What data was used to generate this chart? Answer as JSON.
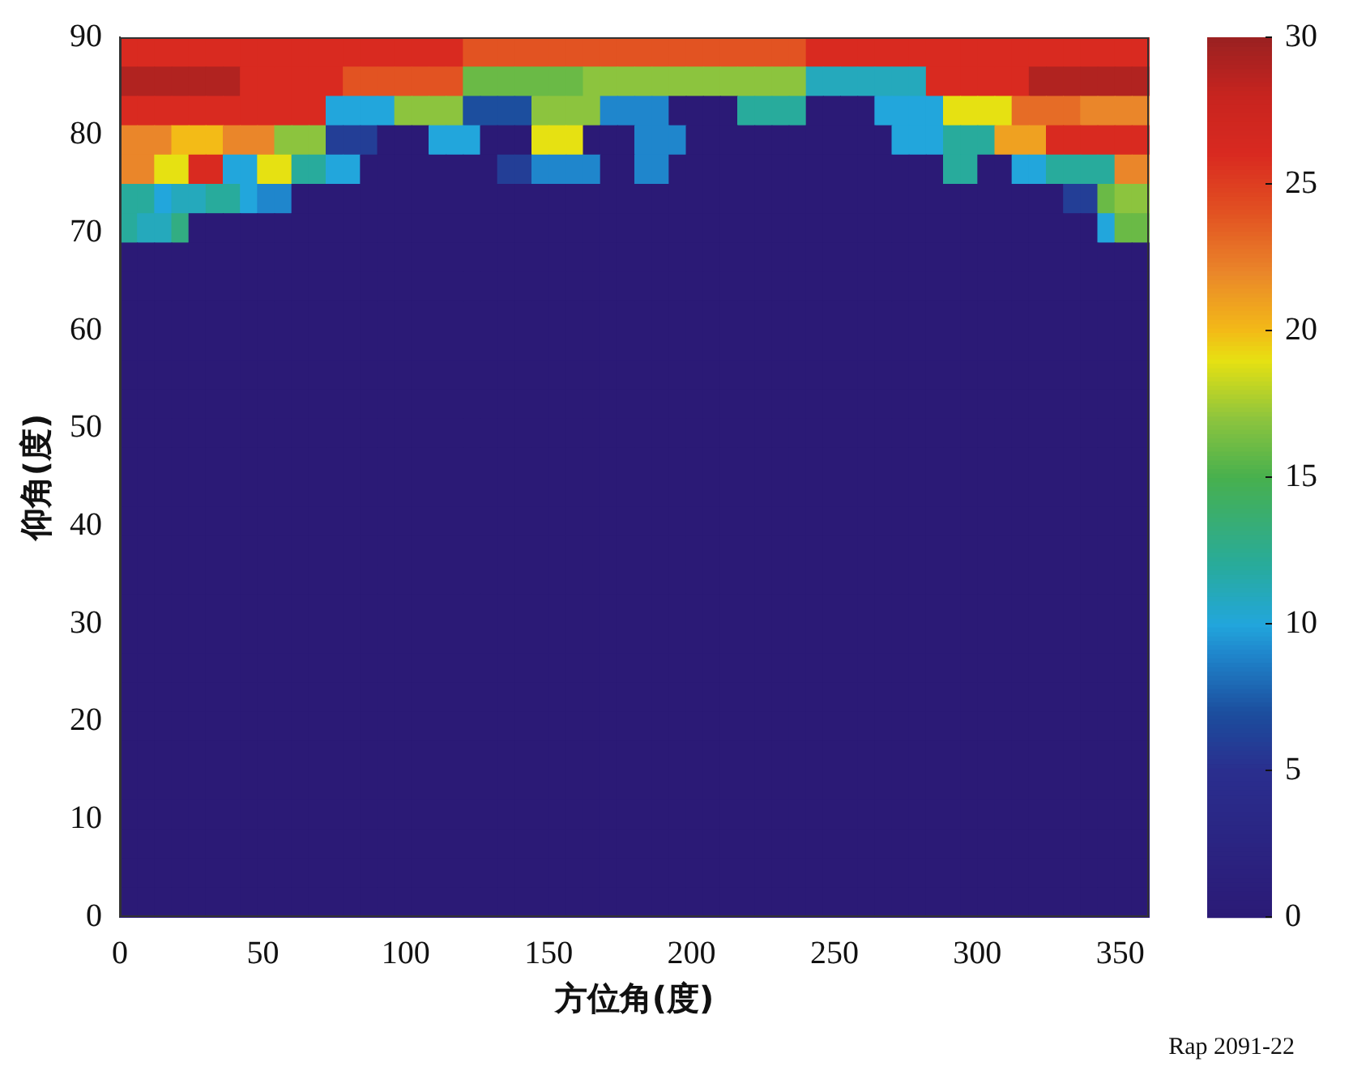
{
  "chart_data": {
    "type": "heatmap",
    "xlabel": "方位角(度)",
    "ylabel": "仰角(度)",
    "xlim": [
      0,
      360
    ],
    "xticks": [
      0,
      50,
      100,
      150,
      200,
      250,
      300,
      350
    ],
    "ylim": [
      0,
      90
    ],
    "yticks": [
      0,
      10,
      20,
      30,
      40,
      50,
      60,
      70,
      80,
      90
    ],
    "clim": [
      0,
      30
    ],
    "cticks": [
      0,
      5,
      10,
      15,
      20,
      25,
      30
    ],
    "annotations": [
      "Rap 2091-22"
    ],
    "cells": [
      [
        26,
        26,
        26,
        26,
        26,
        26,
        26,
        26,
        26,
        26,
        26,
        26,
        26,
        26,
        26,
        26,
        26,
        26,
        26,
        26,
        24,
        24,
        24,
        24,
        24,
        24,
        24,
        24,
        24,
        24,
        24,
        24,
        24,
        24,
        24,
        24,
        24,
        24,
        24,
        24,
        26,
        26,
        26,
        26,
        26,
        26,
        26,
        26,
        26,
        26,
        26,
        26,
        26,
        26,
        26,
        26,
        26,
        26,
        26,
        26
      ],
      [
        29,
        29,
        29,
        29,
        29,
        29,
        29,
        26,
        26,
        26,
        26,
        26,
        26,
        24,
        24,
        24,
        24,
        24,
        24,
        24,
        16,
        16,
        16,
        16,
        16,
        16,
        16,
        17,
        17,
        17,
        17,
        17,
        17,
        17,
        17,
        17,
        17,
        17,
        17,
        17,
        11,
        11,
        11,
        11,
        11,
        11,
        11,
        26,
        26,
        26,
        26,
        26,
        26,
        29,
        29,
        29,
        29,
        29,
        29,
        29
      ],
      [
        26,
        26,
        26,
        26,
        26,
        26,
        26,
        26,
        26,
        26,
        26,
        26,
        10,
        10,
        10,
        10,
        17,
        17,
        17,
        17,
        7,
        7,
        7,
        7,
        17,
        17,
        17,
        17,
        9,
        9,
        9,
        9,
        0,
        0,
        0,
        0,
        12,
        12,
        12,
        12,
        0,
        0,
        0,
        0,
        10,
        10,
        10,
        10,
        19,
        19,
        19,
        19,
        23,
        23,
        23,
        23,
        22,
        22,
        22,
        22
      ],
      [
        22,
        22,
        22,
        20,
        20,
        20,
        22,
        22,
        22,
        17,
        17,
        17,
        6,
        6,
        6,
        0,
        0,
        0,
        10,
        10,
        10,
        0,
        0,
        0,
        19,
        19,
        19,
        0,
        0,
        0,
        9,
        9,
        9,
        0,
        0,
        0,
        0,
        0,
        0,
        0,
        0,
        0,
        0,
        0,
        0,
        10,
        10,
        10,
        12,
        12,
        12,
        21,
        21,
        21,
        26,
        26,
        26,
        26,
        26,
        26
      ],
      [
        22,
        22,
        19,
        19,
        26,
        26,
        10,
        10,
        19,
        19,
        12,
        12,
        10,
        10,
        0,
        0,
        0,
        0,
        0,
        0,
        0,
        0,
        6,
        6,
        9,
        9,
        9,
        9,
        0,
        0,
        9,
        9,
        0,
        0,
        0,
        0,
        0,
        0,
        0,
        0,
        0,
        0,
        0,
        0,
        0,
        0,
        0,
        0,
        12,
        12,
        0,
        0,
        10,
        10,
        12,
        12,
        12,
        12,
        22,
        22
      ],
      [
        12,
        12,
        10,
        11,
        11,
        12,
        12,
        10,
        9,
        9,
        0,
        0,
        0,
        0,
        0,
        0,
        0,
        0,
        0,
        0,
        0,
        0,
        0,
        0,
        0,
        0,
        0,
        0,
        0,
        0,
        0,
        0,
        0,
        0,
        0,
        0,
        0,
        0,
        0,
        0,
        0,
        0,
        0,
        0,
        0,
        0,
        0,
        0,
        0,
        0,
        0,
        0,
        0,
        0,
        0,
        6,
        6,
        16,
        17,
        17
      ],
      [
        12,
        11,
        11,
        13,
        0,
        0,
        0,
        0,
        0,
        0,
        0,
        0,
        0,
        0,
        0,
        0,
        0,
        0,
        0,
        0,
        0,
        0,
        0,
        0,
        0,
        0,
        0,
        0,
        0,
        0,
        0,
        0,
        0,
        0,
        0,
        0,
        0,
        0,
        0,
        0,
        0,
        0,
        0,
        0,
        0,
        0,
        0,
        0,
        0,
        0,
        0,
        0,
        0,
        0,
        0,
        0,
        0,
        10,
        16,
        16
      ],
      [
        0,
        0,
        0,
        0,
        0,
        0,
        0,
        0,
        0,
        0,
        0,
        0,
        0,
        0,
        0,
        0,
        0,
        0,
        0,
        0,
        0,
        0,
        0,
        0,
        0,
        0,
        0,
        0,
        0,
        0,
        0,
        0,
        0,
        0,
        0,
        0,
        0,
        0,
        0,
        0,
        0,
        0,
        0,
        0,
        0,
        0,
        0,
        0,
        0,
        0,
        0,
        0,
        0,
        0,
        0,
        0,
        0,
        0,
        0,
        0
      ],
      [
        0,
        0,
        0,
        0,
        0,
        0,
        0,
        0,
        0,
        0,
        0,
        0,
        0,
        0,
        0,
        0,
        0,
        0,
        0,
        0,
        0,
        0,
        0,
        0,
        0,
        0,
        0,
        0,
        0,
        0,
        0,
        0,
        0,
        0,
        0,
        0,
        0,
        0,
        0,
        0,
        0,
        0,
        0,
        0,
        0,
        0,
        0,
        0,
        0,
        0,
        0,
        0,
        0,
        0,
        0,
        0,
        0,
        0,
        0,
        0
      ],
      [
        0,
        0,
        0,
        0,
        0,
        0,
        0,
        0,
        0,
        0,
        0,
        0,
        0,
        0,
        0,
        0,
        0,
        0,
        0,
        0,
        0,
        0,
        0,
        0,
        0,
        0,
        0,
        0,
        0,
        0,
        0,
        0,
        0,
        0,
        0,
        0,
        0,
        0,
        0,
        0,
        0,
        0,
        0,
        0,
        0,
        0,
        0,
        0,
        0,
        0,
        0,
        0,
        0,
        0,
        0,
        0,
        0,
        0,
        0,
        0
      ],
      [
        0,
        0,
        0,
        0,
        0,
        0,
        0,
        0,
        0,
        0,
        0,
        0,
        0,
        0,
        0,
        0,
        0,
        0,
        0,
        0,
        0,
        0,
        0,
        0,
        0,
        0,
        0,
        0,
        0,
        0,
        0,
        0,
        0,
        0,
        0,
        0,
        0,
        0,
        0,
        0,
        0,
        0,
        0,
        0,
        0,
        0,
        0,
        0,
        0,
        0,
        0,
        0,
        0,
        0,
        0,
        0,
        0,
        0,
        0,
        0
      ],
      [
        0,
        0,
        0,
        0,
        0,
        0,
        0,
        0,
        0,
        0,
        0,
        0,
        0,
        0,
        0,
        0,
        0,
        0,
        0,
        0,
        0,
        0,
        0,
        0,
        0,
        0,
        0,
        0,
        0,
        0,
        0,
        0,
        0,
        0,
        0,
        0,
        0,
        0,
        0,
        0,
        0,
        0,
        0,
        0,
        0,
        0,
        0,
        0,
        0,
        0,
        0,
        0,
        0,
        0,
        0,
        0,
        0,
        0,
        0,
        0
      ],
      [
        0,
        0,
        0,
        0,
        0,
        0,
        0,
        0,
        0,
        0,
        0,
        0,
        0,
        0,
        0,
        0,
        0,
        0,
        0,
        0,
        0,
        0,
        0,
        0,
        0,
        0,
        0,
        0,
        0,
        0,
        0,
        0,
        0,
        0,
        0,
        0,
        0,
        0,
        0,
        0,
        0,
        0,
        0,
        0,
        0,
        0,
        0,
        0,
        0,
        0,
        0,
        0,
        0,
        0,
        0,
        0,
        0,
        0,
        0,
        0
      ],
      [
        0,
        0,
        0,
        0,
        0,
        0,
        0,
        0,
        0,
        0,
        0,
        0,
        0,
        0,
        0,
        0,
        0,
        0,
        0,
        0,
        0,
        0,
        0,
        0,
        0,
        0,
        0,
        0,
        0,
        0,
        0,
        0,
        0,
        0,
        0,
        0,
        0,
        0,
        0,
        0,
        0,
        0,
        0,
        0,
        0,
        0,
        0,
        0,
        0,
        0,
        0,
        0,
        0,
        0,
        0,
        0,
        0,
        0,
        0,
        0
      ],
      [
        0,
        0,
        0,
        0,
        0,
        0,
        0,
        0,
        0,
        0,
        0,
        0,
        0,
        0,
        0,
        0,
        0,
        0,
        0,
        0,
        0,
        0,
        0,
        0,
        0,
        0,
        0,
        0,
        0,
        0,
        0,
        0,
        0,
        0,
        0,
        0,
        0,
        0,
        0,
        0,
        0,
        0,
        0,
        0,
        0,
        0,
        0,
        0,
        0,
        0,
        0,
        0,
        0,
        0,
        0,
        0,
        0,
        0,
        0,
        0
      ],
      [
        0,
        0,
        0,
        0,
        0,
        0,
        0,
        0,
        0,
        0,
        0,
        0,
        0,
        0,
        0,
        0,
        0,
        0,
        0,
        0,
        0,
        0,
        0,
        0,
        0,
        0,
        0,
        0,
        0,
        0,
        0,
        0,
        0,
        0,
        0,
        0,
        0,
        0,
        0,
        0,
        0,
        0,
        0,
        0,
        0,
        0,
        0,
        0,
        0,
        0,
        0,
        0,
        0,
        0,
        0,
        0,
        0,
        0,
        0,
        0
      ],
      [
        0,
        0,
        0,
        0,
        0,
        0,
        0,
        0,
        0,
        0,
        0,
        0,
        0,
        0,
        0,
        0,
        0,
        0,
        0,
        0,
        0,
        0,
        0,
        0,
        0,
        0,
        0,
        0,
        0,
        0,
        0,
        0,
        0,
        0,
        0,
        0,
        0,
        0,
        0,
        0,
        0,
        0,
        0,
        0,
        0,
        0,
        0,
        0,
        0,
        0,
        0,
        0,
        0,
        0,
        0,
        0,
        0,
        0,
        0,
        0
      ],
      [
        0,
        0,
        0,
        0,
        0,
        0,
        0,
        0,
        0,
        0,
        0,
        0,
        0,
        0,
        0,
        0,
        0,
        0,
        0,
        0,
        0,
        0,
        0,
        0,
        0,
        0,
        0,
        0,
        0,
        0,
        0,
        0,
        0,
        0,
        0,
        0,
        0,
        0,
        0,
        0,
        0,
        0,
        0,
        0,
        0,
        0,
        0,
        0,
        0,
        0,
        0,
        0,
        0,
        0,
        0,
        0,
        0,
        0,
        0,
        0
      ],
      [
        0,
        0,
        0,
        0,
        0,
        0,
        0,
        0,
        0,
        0,
        0,
        0,
        0,
        0,
        0,
        0,
        0,
        0,
        0,
        0,
        0,
        0,
        0,
        0,
        0,
        0,
        0,
        0,
        0,
        0,
        0,
        0,
        0,
        0,
        0,
        0,
        0,
        0,
        0,
        0,
        0,
        0,
        0,
        0,
        0,
        0,
        0,
        0,
        0,
        0,
        0,
        0,
        0,
        0,
        0,
        0,
        0,
        0,
        0,
        0
      ],
      [
        0,
        0,
        0,
        0,
        0,
        0,
        0,
        0,
        0,
        0,
        0,
        0,
        0,
        0,
        0,
        0,
        0,
        0,
        0,
        0,
        0,
        0,
        0,
        0,
        0,
        0,
        0,
        0,
        0,
        0,
        0,
        0,
        0,
        0,
        0,
        0,
        0,
        0,
        0,
        0,
        0,
        0,
        0,
        0,
        0,
        0,
        0,
        0,
        0,
        0,
        0,
        0,
        0,
        0,
        0,
        0,
        0,
        0,
        0,
        0
      ],
      [
        0,
        0,
        0,
        0,
        0,
        0,
        0,
        0,
        0,
        0,
        0,
        0,
        0,
        0,
        0,
        0,
        0,
        0,
        0,
        0,
        0,
        0,
        0,
        0,
        0,
        0,
        0,
        0,
        0,
        0,
        0,
        0,
        0,
        0,
        0,
        0,
        0,
        0,
        0,
        0,
        0,
        0,
        0,
        0,
        0,
        0,
        0,
        0,
        0,
        0,
        0,
        0,
        0,
        0,
        0,
        0,
        0,
        0,
        0,
        0
      ],
      [
        0,
        0,
        0,
        0,
        0,
        0,
        0,
        0,
        0,
        0,
        0,
        0,
        0,
        0,
        0,
        0,
        0,
        0,
        0,
        0,
        0,
        0,
        0,
        0,
        0,
        0,
        0,
        0,
        0,
        0,
        0,
        0,
        0,
        0,
        0,
        0,
        0,
        0,
        0,
        0,
        0,
        0,
        0,
        0,
        0,
        0,
        0,
        0,
        0,
        0,
        0,
        0,
        0,
        0,
        0,
        0,
        0,
        0,
        0,
        0
      ],
      [
        0,
        0,
        0,
        0,
        0,
        0,
        0,
        0,
        0,
        0,
        0,
        0,
        0,
        0,
        0,
        0,
        0,
        0,
        0,
        0,
        0,
        0,
        0,
        0,
        0,
        0,
        0,
        0,
        0,
        0,
        0,
        0,
        0,
        0,
        0,
        0,
        0,
        0,
        0,
        0,
        0,
        0,
        0,
        0,
        0,
        0,
        0,
        0,
        0,
        0,
        0,
        0,
        0,
        0,
        0,
        0,
        0,
        0,
        0,
        0
      ],
      [
        0,
        0,
        0,
        0,
        0,
        0,
        0,
        0,
        0,
        0,
        0,
        0,
        0,
        0,
        0,
        0,
        0,
        0,
        0,
        0,
        0,
        0,
        0,
        0,
        0,
        0,
        0,
        0,
        0,
        0,
        0,
        0,
        0,
        0,
        0,
        0,
        0,
        0,
        0,
        0,
        0,
        0,
        0,
        0,
        0,
        0,
        0,
        0,
        0,
        0,
        0,
        0,
        0,
        0,
        0,
        0,
        0,
        0,
        0,
        0
      ],
      [
        0,
        0,
        0,
        0,
        0,
        0,
        0,
        0,
        0,
        0,
        0,
        0,
        0,
        0,
        0,
        0,
        0,
        0,
        0,
        0,
        0,
        0,
        0,
        0,
        0,
        0,
        0,
        0,
        0,
        0,
        0,
        0,
        0,
        0,
        0,
        0,
        0,
        0,
        0,
        0,
        0,
        0,
        0,
        0,
        0,
        0,
        0,
        0,
        0,
        0,
        0,
        0,
        0,
        0,
        0,
        0,
        0,
        0,
        0,
        0
      ],
      [
        0,
        0,
        0,
        0,
        0,
        0,
        0,
        0,
        0,
        0,
        0,
        0,
        0,
        0,
        0,
        0,
        0,
        0,
        0,
        0,
        0,
        0,
        0,
        0,
        0,
        0,
        0,
        0,
        0,
        0,
        0,
        0,
        0,
        0,
        0,
        0,
        0,
        0,
        0,
        0,
        0,
        0,
        0,
        0,
        0,
        0,
        0,
        0,
        0,
        0,
        0,
        0,
        0,
        0,
        0,
        0,
        0,
        0,
        0,
        0
      ],
      [
        0,
        0,
        0,
        0,
        0,
        0,
        0,
        0,
        0,
        0,
        0,
        0,
        0,
        0,
        0,
        0,
        0,
        0,
        0,
        0,
        0,
        0,
        0,
        0,
        0,
        0,
        0,
        0,
        0,
        0,
        0,
        0,
        0,
        0,
        0,
        0,
        0,
        0,
        0,
        0,
        0,
        0,
        0,
        0,
        0,
        0,
        0,
        0,
        0,
        0,
        0,
        0,
        0,
        0,
        0,
        0,
        0,
        0,
        0,
        0
      ],
      [
        0,
        0,
        0,
        0,
        0,
        0,
        0,
        0,
        0,
        0,
        0,
        0,
        0,
        0,
        0,
        0,
        0,
        0,
        0,
        0,
        0,
        0,
        0,
        0,
        0,
        0,
        0,
        0,
        0,
        0,
        0,
        0,
        0,
        0,
        0,
        0,
        0,
        0,
        0,
        0,
        0,
        0,
        0,
        0,
        0,
        0,
        0,
        0,
        0,
        0,
        0,
        0,
        0,
        0,
        0,
        0,
        0,
        0,
        0,
        0
      ],
      [
        0,
        0,
        0,
        0,
        0,
        0,
        0,
        0,
        0,
        0,
        0,
        0,
        0,
        0,
        0,
        0,
        0,
        0,
        0,
        0,
        0,
        0,
        0,
        0,
        0,
        0,
        0,
        0,
        0,
        0,
        0,
        0,
        0,
        0,
        0,
        0,
        0,
        0,
        0,
        0,
        0,
        0,
        0,
        0,
        0,
        0,
        0,
        0,
        0,
        0,
        0,
        0,
        0,
        0,
        0,
        0,
        0,
        0,
        0,
        0
      ],
      [
        0,
        0,
        0,
        0,
        0,
        0,
        0,
        0,
        0,
        0,
        0,
        0,
        0,
        0,
        0,
        0,
        0,
        0,
        0,
        0,
        0,
        0,
        0,
        0,
        0,
        0,
        0,
        0,
        0,
        0,
        0,
        0,
        0,
        0,
        0,
        0,
        0,
        0,
        0,
        0,
        0,
        0,
        0,
        0,
        0,
        0,
        0,
        0,
        0,
        0,
        0,
        0,
        0,
        0,
        0,
        0,
        0,
        0,
        0,
        0
      ]
    ]
  }
}
